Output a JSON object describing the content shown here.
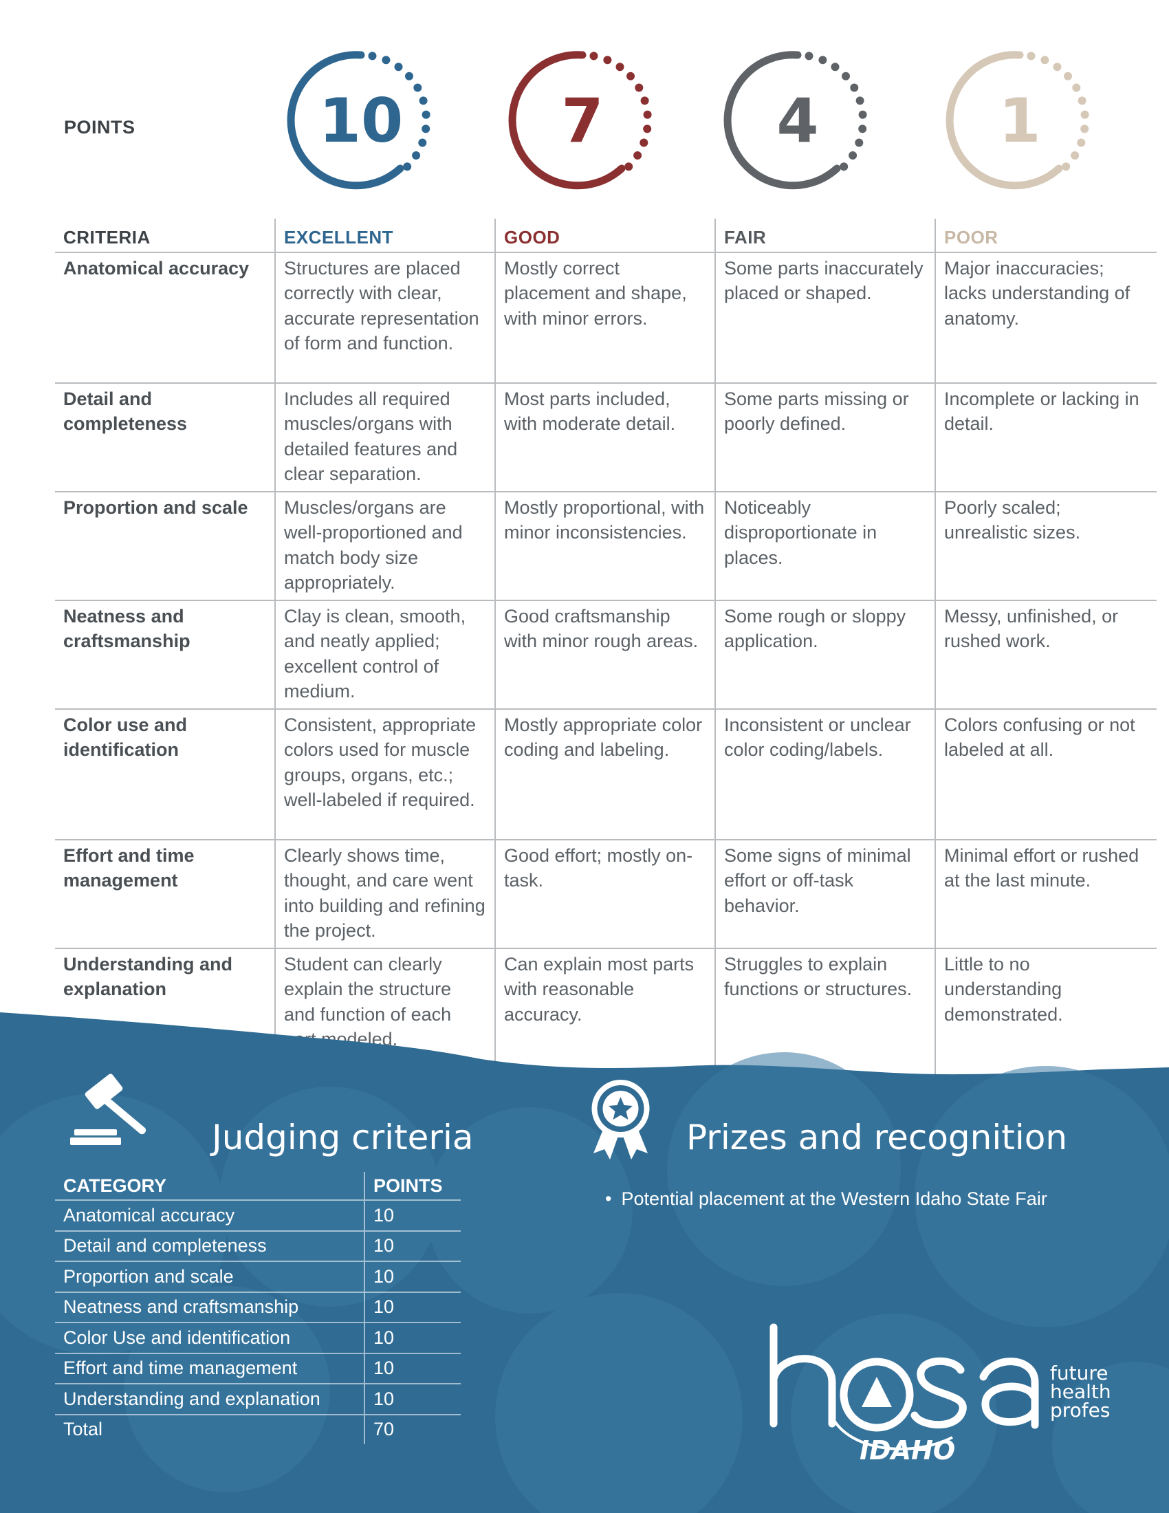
{
  "points": {
    "label": "POINTS",
    "badges": [
      {
        "value": "10",
        "color": "#2e6690"
      },
      {
        "value": "7",
        "color": "#8b3031"
      },
      {
        "value": "4",
        "color": "#5f6367"
      },
      {
        "value": "1",
        "color": "#d6c8b7"
      }
    ]
  },
  "rubric": {
    "headers": [
      "CRITERIA",
      "EXCELLENT",
      "GOOD",
      "FAIR",
      "POOR"
    ],
    "rows": [
      {
        "criteria": "Anatomical accuracy",
        "excellent": "Structures are placed correctly with clear, accurate representation of form and function.",
        "good": "Mostly correct placement and shape, with minor errors.",
        "fair": "Some parts inaccurately placed or shaped.",
        "poor": "Major inaccuracies; lacks understanding of anatomy."
      },
      {
        "criteria": "Detail and completeness",
        "excellent": "Includes all required muscles/organs with detailed features and clear separation.",
        "good": "Most parts included, with moderate detail.",
        "fair": "Some parts missing or poorly defined.",
        "poor": "Incomplete or lacking in detail."
      },
      {
        "criteria": "Proportion and scale",
        "excellent": "Muscles/organs are well-proportioned and match body size appropriately.",
        "good": "Mostly proportional, with minor inconsistencies.",
        "fair": "Noticeably disproportionate in places.",
        "poor": "Poorly scaled; unrealistic sizes."
      },
      {
        "criteria": "Neatness and craftsmanship",
        "excellent": "Clay is clean, smooth, and neatly applied; excellent control of medium.",
        "good": "Good craftsmanship with minor rough areas.",
        "fair": "Some rough or sloppy application.",
        "poor": "Messy, unfinished, or rushed work."
      },
      {
        "criteria": "Color use and identification",
        "excellent": "Consistent, appropriate colors used for muscle groups, organs, etc.; well-labeled if required.",
        "good": "Mostly appropriate color coding and labeling.",
        "fair": "Inconsistent or unclear color coding/labels.",
        "poor": "Colors confusing or not labeled at all."
      },
      {
        "criteria": "Effort and time management",
        "excellent": "Clearly shows time, thought, and care went into building and refining the project.",
        "good": "Good effort; mostly on-task.",
        "fair": "Some signs of minimal effort or off-task behavior.",
        "poor": "Minimal effort or rushed at the last minute."
      },
      {
        "criteria": "Understanding and explanation",
        "excellent": "Student can clearly explain the structure and function of each part modeled.",
        "good": "Can explain most parts with reasonable accuracy.",
        "fair": "Struggles to explain functions or structures.",
        "poor": "Little to no understanding demonstrated."
      }
    ]
  },
  "judging": {
    "title": "Judging criteria",
    "headers": [
      "CATEGORY",
      "POINTS"
    ],
    "rows": [
      {
        "category": "Anatomical accuracy",
        "points": "10"
      },
      {
        "category": "Detail and completeness",
        "points": "10"
      },
      {
        "category": "Proportion and scale",
        "points": "10"
      },
      {
        "category": "Neatness and craftsmanship",
        "points": "10"
      },
      {
        "category": "Color Use and identification",
        "points": "10"
      },
      {
        "category": "Effort and time management",
        "points": "10"
      },
      {
        "category": "Understanding and explanation",
        "points": "10"
      },
      {
        "category": "Total",
        "points": "70"
      }
    ]
  },
  "prizes": {
    "title": "Prizes and recognition",
    "items": [
      "Potential placement at the Western Idaho State Fair"
    ]
  },
  "logo": {
    "wordmark": "hosa",
    "line1": "future",
    "line2": "health",
    "line3": "professionals",
    "state": "IDAHO"
  },
  "colors": {
    "footer_blue": "#2f6b93",
    "excellent": "#2e6690",
    "good": "#8b3031",
    "fair": "#5f6367",
    "poor": "#d6c8b7"
  }
}
